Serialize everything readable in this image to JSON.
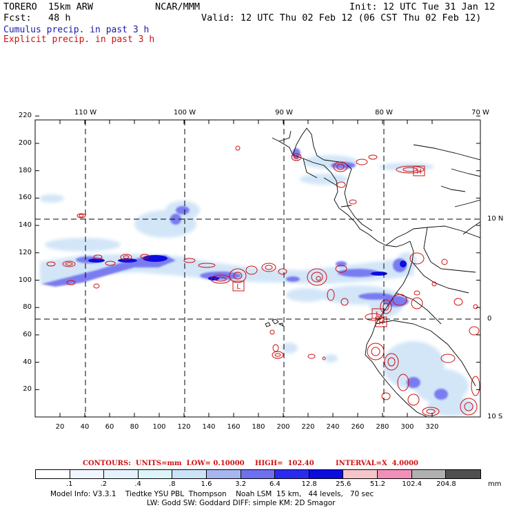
{
  "header": {
    "model": "TORERO  15km ARW",
    "org": "NCAR/MMM",
    "init": "Init: 12 UTC Tue 31 Jan 12",
    "fcst_label": "Fcst:   48 h",
    "valid": "Valid: 12 UTC Thu 02 Feb 12 (06 CST Thu 02 Feb 12)",
    "legend_cumulus": "Cumulus precip. in past 3 h",
    "legend_explicit": "Explicit precip. in past 3 h"
  },
  "colors": {
    "cumulus": "#1a1aa8",
    "explicit": "#d01010",
    "coast": "#000000",
    "grid": "#000000"
  },
  "map": {
    "top_lon_labels": [
      "110 W",
      "100 W",
      "90 W",
      "80 W",
      "70 W"
    ],
    "right_lat_labels": [
      "10 N",
      "0",
      "10 S"
    ],
    "x_ticks": [
      "20",
      "40",
      "60",
      "80",
      "100",
      "120",
      "140",
      "160",
      "180",
      "200",
      "220",
      "240",
      "260",
      "280",
      "300",
      "320"
    ],
    "y_ticks": [
      "20",
      "40",
      "60",
      "80",
      "100",
      "120",
      "140",
      "160",
      "180",
      "200",
      "220"
    ],
    "box_labels": [
      "L",
      "H",
      "L",
      "H"
    ]
  },
  "contours": {
    "header": "CONTOURS:  UNITS=mm  LOW= 0.10000",
    "high": "HIGH=  102.40",
    "interval": "INTERVAL=X  4.0000"
  },
  "colorbar": {
    "labels": [
      ".1",
      ".2",
      ".4",
      ".8",
      "1.6",
      "3.2",
      "6.4",
      "12.8",
      "25.6",
      "51.2",
      "102.4",
      "204.8"
    ],
    "unit": "mm",
    "colors": [
      "#ffffff",
      "#f0f6ff",
      "#e6f2fb",
      "#ddf5f8",
      "#cbe2f7",
      "#a8b6f0",
      "#6f6ff0",
      "#2b2bf0",
      "#0c0ce0",
      "#f5c6c9",
      "#f090b8",
      "#b0b0b0",
      "#505050",
      "#d8a6f0"
    ]
  },
  "footer": {
    "line1": "Model Info: V3.3.1    Tiedtke YSU PBL  Thompson    Noah LSM  15 km,   44 levels,   70 sec",
    "line2": "LW: Godd SW: Goddard DIFF: simple KM: 2D Smagor"
  }
}
